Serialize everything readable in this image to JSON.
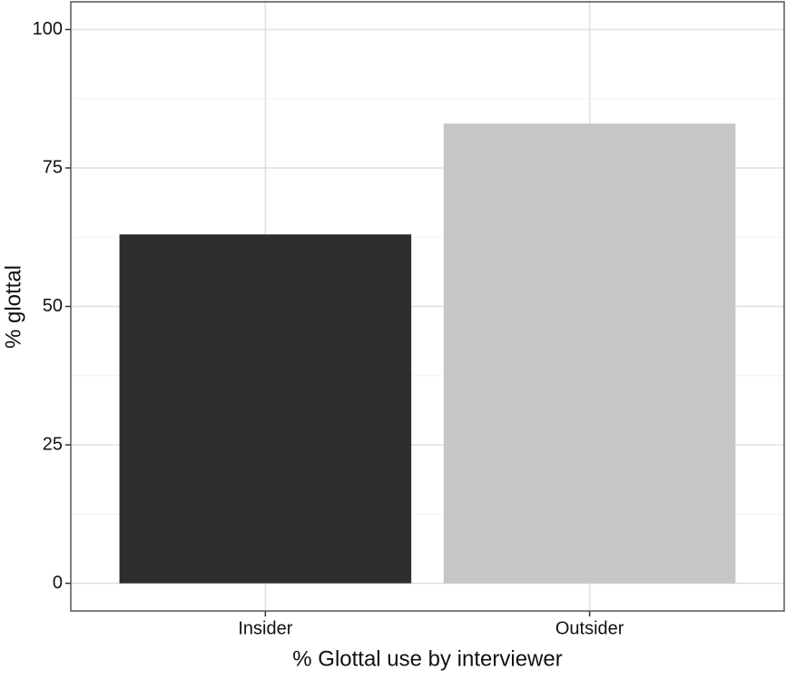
{
  "chart_data": {
    "type": "bar",
    "categories": [
      "Insider",
      "Outsider"
    ],
    "values": [
      63,
      83
    ],
    "colors": [
      "#2e2e2e",
      "#c6c6c6"
    ],
    "xlabel": "% Glottal use by interviewer",
    "ylabel": "% glottal",
    "ylim": [
      -5,
      105
    ],
    "yticks": [
      0,
      25,
      50,
      75,
      100
    ],
    "yminor": [
      12.5,
      37.5,
      62.5,
      87.5
    ],
    "grid": true
  }
}
